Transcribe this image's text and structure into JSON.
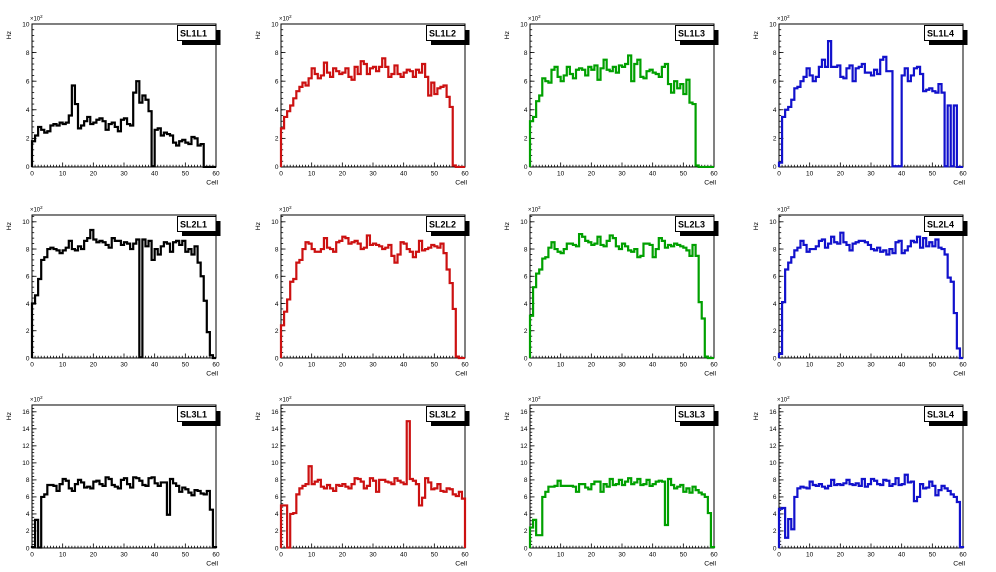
{
  "canvas": {
    "background": "#ffffff"
  },
  "chart_data": {
    "type": "line",
    "style": "step-histogram (ROOT TH1 grid of 12 pads, 3 rows x 4 cols)",
    "xlabel": "Cell",
    "ylabel": "Hz",
    "scale_mant": "×10",
    "scale_exp": "2",
    "x_range": [
      0,
      60
    ],
    "xticks": [
      0,
      10,
      20,
      30,
      40,
      50,
      60
    ],
    "grid": false,
    "legend": "none (per-pad title box, top right)",
    "panels": [
      {
        "name": "SL1L1",
        "color": "#000000",
        "ymax": 10,
        "yticks": [
          0,
          2,
          4,
          6,
          8,
          10
        ],
        "values": [
          1.8,
          2.2,
          2.8,
          2.6,
          2.4,
          2.5,
          2.9,
          3.0,
          2.9,
          3.1,
          3.0,
          3.1,
          3.6,
          5.7,
          4.4,
          2.7,
          2.9,
          3.2,
          3.5,
          3.0,
          3.1,
          3.3,
          3.4,
          3.2,
          2.6,
          3.0,
          3.1,
          2.8,
          2.5,
          3.3,
          3.4,
          3.0,
          2.9,
          5.2,
          6.0,
          4.5,
          5.0,
          4.7,
          3.9,
          0.05,
          2.6,
          2.7,
          2.2,
          2.4,
          2.3,
          2.2,
          1.7,
          1.5,
          1.8,
          1.9,
          1.7,
          1.6,
          2.1,
          2.0,
          1.5,
          1.6,
          0,
          0,
          0,
          0
        ]
      },
      {
        "name": "SL1L2",
        "color": "#cc1111",
        "ymax": 10,
        "yticks": [
          0,
          2,
          4,
          6,
          8,
          10
        ],
        "values": [
          2.7,
          3.5,
          3.9,
          4.3,
          4.8,
          5.3,
          5.6,
          5.9,
          5.7,
          6.2,
          6.9,
          6.5,
          6.2,
          6.4,
          7.3,
          6.6,
          6.3,
          6.9,
          6.7,
          6.5,
          6.6,
          6.9,
          6.3,
          6.1,
          7.0,
          6.5,
          7.4,
          7.2,
          6.5,
          6.9,
          7.0,
          6.7,
          7.0,
          7.6,
          7.0,
          6.3,
          6.5,
          7.1,
          6.5,
          6.3,
          6.6,
          6.8,
          6.7,
          6.3,
          6.8,
          6.6,
          7.2,
          6.3,
          5.0,
          5.9,
          5.1,
          5.5,
          5.6,
          5.7,
          4.9,
          4.2,
          0.1,
          0,
          0,
          0
        ]
      },
      {
        "name": "SL1L3",
        "color": "#00a000",
        "ymax": 10,
        "yticks": [
          0,
          2,
          4,
          6,
          8,
          10
        ],
        "values": [
          3.2,
          3.5,
          4.6,
          5.0,
          6.2,
          6.0,
          5.9,
          6.8,
          7.0,
          6.3,
          6.0,
          6.4,
          7.0,
          6.5,
          6.2,
          6.8,
          6.9,
          6.8,
          6.4,
          7.0,
          6.8,
          7.1,
          6.1,
          6.9,
          7.5,
          6.8,
          6.7,
          7.0,
          6.6,
          7.1,
          7.0,
          7.2,
          7.8,
          6.0,
          7.2,
          7.5,
          6.3,
          6.2,
          6.7,
          6.8,
          6.6,
          6.5,
          6.3,
          7.0,
          7.2,
          5.8,
          5.2,
          6.0,
          5.5,
          5.8,
          5.1,
          6.1,
          4.5,
          4.4,
          0.1,
          0,
          0,
          0,
          0,
          0
        ]
      },
      {
        "name": "SL1L4",
        "color": "#1111cc",
        "ymax": 10,
        "yticks": [
          0,
          2,
          4,
          6,
          8,
          10
        ],
        "values": [
          0.3,
          3.5,
          4.0,
          4.2,
          4.7,
          5.5,
          5.6,
          6.0,
          6.3,
          6.9,
          6.4,
          6.0,
          6.3,
          7.0,
          7.5,
          7.0,
          8.8,
          7.0,
          7.0,
          7.1,
          6.3,
          6.2,
          6.9,
          7.1,
          6.0,
          6.9,
          7.0,
          7.2,
          6.6,
          6.6,
          6.4,
          6.8,
          6.5,
          7.5,
          7.7,
          6.7,
          6.7,
          0.05,
          0.05,
          0.05,
          6.4,
          6.9,
          6.0,
          6.4,
          6.9,
          7.0,
          6.5,
          5.3,
          5.4,
          5.5,
          5.3,
          5.2,
          5.8,
          5.2,
          0.05,
          4.3,
          0.05,
          4.3,
          0,
          0
        ]
      },
      {
        "name": "SL2L1",
        "color": "#000000",
        "ymax": 10.5,
        "yticks": [
          0,
          2,
          4,
          6,
          8,
          10
        ],
        "values": [
          4.0,
          4.6,
          5.8,
          7.2,
          7.4,
          8.0,
          8.1,
          8.0,
          7.9,
          7.7,
          7.9,
          8.1,
          8.6,
          8.0,
          7.9,
          8.2,
          8.0,
          8.6,
          8.8,
          9.4,
          8.7,
          8.5,
          8.6,
          8.5,
          8.3,
          8.1,
          8.8,
          8.6,
          8.6,
          8.3,
          8.5,
          8.4,
          8.0,
          8.4,
          8.7,
          0.05,
          8.7,
          8.2,
          8.6,
          7.2,
          8.0,
          7.6,
          8.2,
          8.5,
          8.4,
          7.8,
          8.5,
          8.6,
          8.3,
          8.6,
          7.8,
          8.0,
          7.6,
          8.2,
          7.0,
          6.0,
          4.2,
          1.9,
          0.2,
          0
        ]
      },
      {
        "name": "SL2L2",
        "color": "#cc1111",
        "ymax": 10.5,
        "yticks": [
          0,
          2,
          4,
          6,
          8,
          10
        ],
        "values": [
          2.4,
          3.4,
          4.3,
          5.6,
          5.8,
          7.0,
          7.2,
          8.0,
          8.5,
          8.4,
          8.0,
          7.8,
          7.8,
          8.0,
          8.8,
          8.1,
          8.0,
          7.8,
          8.5,
          8.6,
          8.9,
          8.8,
          8.4,
          8.5,
          8.6,
          8.4,
          8.0,
          8.1,
          9.0,
          8.3,
          8.4,
          8.3,
          8.2,
          8.0,
          8.1,
          8.3,
          7.5,
          7.0,
          7.6,
          8.5,
          8.4,
          8.0,
          7.8,
          7.4,
          7.8,
          8.6,
          7.9,
          8.0,
          8.1,
          8.3,
          8.2,
          8.1,
          8.4,
          7.7,
          6.5,
          5.5,
          3.6,
          0.1,
          0,
          0
        ]
      },
      {
        "name": "SL2L3",
        "color": "#00a000",
        "ymax": 10.5,
        "yticks": [
          0,
          2,
          4,
          6,
          8,
          10
        ],
        "values": [
          3.1,
          5.2,
          6.2,
          6.5,
          7.3,
          7.4,
          8.1,
          8.5,
          8.0,
          7.8,
          7.7,
          8.0,
          8.4,
          8.4,
          8.3,
          8.2,
          9.1,
          8.9,
          8.6,
          8.5,
          8.3,
          8.4,
          8.9,
          8.3,
          8.2,
          8.6,
          9.0,
          8.8,
          8.2,
          8.0,
          8.4,
          8.2,
          7.9,
          7.8,
          8.0,
          7.4,
          7.5,
          8.4,
          8.4,
          8.3,
          7.4,
          8.0,
          8.8,
          8.6,
          8.1,
          8.3,
          8.2,
          8.4,
          8.3,
          8.2,
          8.1,
          7.9,
          7.5,
          8.3,
          7.5,
          4.1,
          2.9,
          0.1,
          0,
          0
        ]
      },
      {
        "name": "SL2L4",
        "color": "#1111cc",
        "ymax": 10.5,
        "yticks": [
          0,
          2,
          4,
          6,
          8,
          10
        ],
        "values": [
          0.3,
          4.1,
          6.5,
          7.0,
          7.4,
          7.9,
          8.1,
          8.6,
          8.3,
          7.8,
          8.0,
          8.0,
          8.2,
          8.6,
          8.7,
          8.1,
          8.4,
          8.9,
          8.5,
          8.4,
          9.2,
          8.5,
          8.3,
          7.9,
          8.4,
          8.5,
          8.6,
          8.6,
          8.5,
          8.3,
          8.0,
          7.9,
          8.1,
          7.8,
          7.9,
          7.6,
          8.0,
          7.7,
          8.5,
          8.6,
          7.7,
          7.9,
          8.2,
          8.6,
          8.5,
          8.9,
          8.1,
          8.8,
          8.2,
          8.5,
          8.2,
          8.7,
          8.1,
          8.0,
          7.6,
          5.9,
          5.6,
          3.3,
          0.7,
          0
        ]
      },
      {
        "name": "SL3L1",
        "color": "#000000",
        "ymax": 16.8,
        "yticks": [
          0,
          2,
          4,
          6,
          8,
          10,
          12,
          14,
          16
        ],
        "values": [
          0.1,
          3.3,
          0.05,
          6.0,
          6.3,
          7.4,
          7.4,
          7.3,
          6.7,
          7.5,
          8.1,
          7.9,
          7.0,
          6.7,
          7.5,
          8.0,
          7.7,
          7.1,
          7.2,
          7.0,
          7.8,
          7.9,
          7.5,
          7.3,
          8.3,
          8.1,
          7.4,
          7.2,
          7.0,
          8.0,
          8.2,
          7.5,
          7.1,
          8.3,
          8.2,
          7.9,
          7.4,
          7.3,
          8.2,
          8.3,
          7.6,
          7.3,
          7.7,
          7.7,
          3.9,
          8.1,
          7.6,
          7.3,
          6.6,
          7.1,
          6.9,
          6.5,
          6.2,
          6.8,
          6.7,
          6.4,
          6.3,
          6.7,
          4.5,
          0.1
        ]
      },
      {
        "name": "SL3L2",
        "color": "#cc1111",
        "ymax": 16.8,
        "yticks": [
          0,
          2,
          4,
          6,
          8,
          10,
          12,
          14,
          16
        ],
        "values": [
          5.0,
          5.0,
          0.05,
          4.0,
          4.1,
          6.3,
          7.0,
          7.3,
          7.5,
          9.6,
          7.5,
          7.8,
          8.0,
          7.2,
          7.0,
          7.4,
          7.0,
          6.7,
          7.4,
          7.3,
          7.5,
          7.2,
          7.0,
          7.5,
          8.2,
          8.1,
          7.8,
          7.0,
          7.3,
          8.2,
          7.9,
          6.6,
          8.0,
          8.0,
          7.8,
          7.7,
          7.5,
          8.2,
          7.9,
          7.7,
          7.5,
          14.9,
          8.1,
          7.9,
          7.5,
          5.0,
          5.9,
          8.2,
          7.7,
          6.9,
          7.0,
          7.5,
          6.7,
          6.6,
          7.0,
          6.9,
          6.3,
          6.1,
          6.6,
          5.8
        ]
      },
      {
        "name": "SL3L3",
        "color": "#00a000",
        "ymax": 16.8,
        "yticks": [
          0,
          2,
          4,
          6,
          8,
          10,
          12,
          14,
          16
        ],
        "values": [
          2.4,
          3.3,
          1.5,
          1.5,
          6.0,
          6.6,
          7.2,
          7.2,
          7.3,
          7.9,
          7.3,
          7.3,
          7.3,
          7.3,
          7.2,
          6.6,
          7.5,
          7.5,
          7.1,
          6.9,
          7.5,
          7.8,
          7.8,
          6.6,
          7.5,
          7.2,
          8.1,
          7.4,
          7.5,
          8.0,
          7.4,
          7.8,
          8.2,
          7.5,
          7.7,
          8.1,
          7.4,
          7.5,
          8.0,
          7.3,
          7.5,
          7.8,
          7.9,
          7.8,
          2.7,
          8.1,
          7.4,
          7.0,
          7.2,
          7.4,
          6.6,
          7.0,
          6.5,
          7.2,
          6.8,
          6.5,
          6.3,
          6.0,
          4.1,
          0.1
        ]
      },
      {
        "name": "SL3L4",
        "color": "#1111cc",
        "ymax": 16.8,
        "yticks": [
          0,
          2,
          4,
          6,
          8,
          10,
          12,
          14,
          16
        ],
        "values": [
          4.6,
          4.7,
          1.2,
          3.4,
          2.2,
          6.0,
          7.0,
          7.2,
          7.1,
          7.0,
          7.8,
          7.4,
          7.3,
          7.5,
          7.2,
          7.0,
          7.3,
          8.0,
          7.4,
          7.5,
          7.4,
          7.6,
          8.0,
          7.5,
          7.4,
          7.6,
          7.3,
          8.1,
          7.2,
          7.5,
          8.1,
          7.9,
          7.5,
          7.4,
          8.0,
          7.9,
          7.3,
          7.5,
          8.2,
          7.4,
          7.5,
          8.6,
          7.7,
          7.8,
          5.5,
          6.0,
          7.5,
          7.0,
          7.1,
          7.8,
          7.3,
          6.2,
          6.8,
          7.3,
          7.0,
          6.7,
          6.3,
          6.0,
          5.4,
          0.1
        ]
      }
    ]
  }
}
